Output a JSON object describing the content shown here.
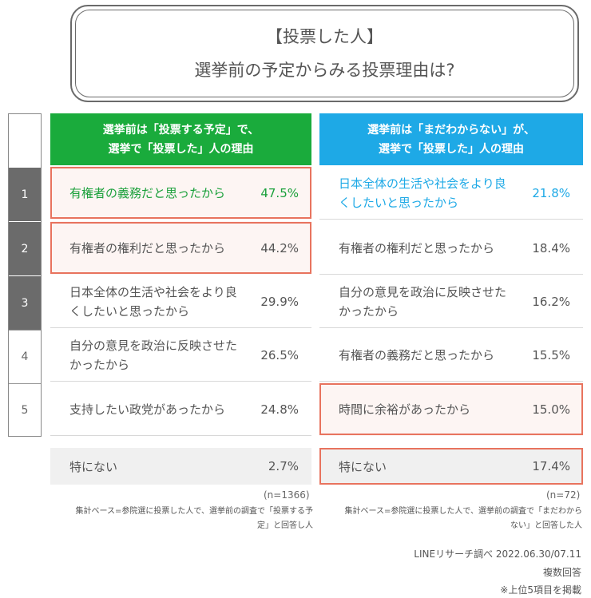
{
  "title": {
    "line1": "【投票した人】",
    "line2": "選挙前の予定からみる投票理由は?"
  },
  "colors": {
    "left_header": "#1aab3c",
    "right_header": "#1ea9e6",
    "highlight": "#e8735e",
    "rank_top": "#6b6b6b"
  },
  "ranks": [
    "1",
    "2",
    "3",
    "4",
    "5"
  ],
  "chart_data": {
    "type": "table",
    "title": "【投票した人】選挙前の予定からみる投票理由は?",
    "columns": [
      {
        "header_line1": "選挙前は「投票する予定」で、",
        "header_line2": "選挙で「投票した」人の理由",
        "rows": [
          {
            "rank": 1,
            "reason": "有権者の義務だと思ったから",
            "value": "47.5%"
          },
          {
            "rank": 2,
            "reason": "有権者の権利だと思ったから",
            "value": "44.2%"
          },
          {
            "rank": 3,
            "reason": "日本全体の生活や社会をより良くしたいと思ったから",
            "reason_line1": "日本全体の生活や社会をより良",
            "reason_line2": "くしたいと思ったから",
            "value": "29.9%"
          },
          {
            "rank": 4,
            "reason": "自分の意見を政治に反映させたかったから",
            "reason_line1": "自分の意見を政治に反映させた",
            "reason_line2": "かったから",
            "value": "26.5%"
          },
          {
            "rank": 5,
            "reason": "支持したい政党があったから",
            "value": "24.8%"
          }
        ],
        "none": {
          "reason": "特にない",
          "value": "2.7%"
        },
        "n": "(n=1366)",
        "note_line1": "集計ベース=参院選に投票した人で、選挙前の調査で「投票する予",
        "note_line2": "定」と回答し人"
      },
      {
        "header_line1": "選挙前は「まだわからない」が、",
        "header_line2": "選挙で「投票した」人の理由",
        "rows": [
          {
            "rank": 1,
            "reason": "日本全体の生活や社会をより良くしたいと思ったから",
            "reason_line1": "日本全体の生活や社会をより良",
            "reason_line2": "くしたいと思ったから",
            "value": "21.8%"
          },
          {
            "rank": 2,
            "reason": "有権者の権利だと思ったから",
            "value": "18.4%"
          },
          {
            "rank": 3,
            "reason": "自分の意見を政治に反映させたかったから",
            "reason_line1": "自分の意見を政治に反映させた",
            "reason_line2": "かったから",
            "value": "16.2%"
          },
          {
            "rank": 4,
            "reason": "有権者の義務だと思ったから",
            "value": "15.5%"
          },
          {
            "rank": 5,
            "reason": "時間に余裕があったから",
            "value": "15.0%"
          }
        ],
        "none": {
          "reason": "特にない",
          "value": "17.4%"
        },
        "n": "(n=72)",
        "note_line1": "集計ベース=参院選に投票した人で、選挙前の調査で「まだわから",
        "note_line2": "ない」と回答した人"
      }
    ]
  },
  "credits": {
    "line1": "LINEリサーチ調べ 2022.06.30/07.11",
    "line2": "複数回答",
    "line3": "※上位5項目を掲載"
  }
}
